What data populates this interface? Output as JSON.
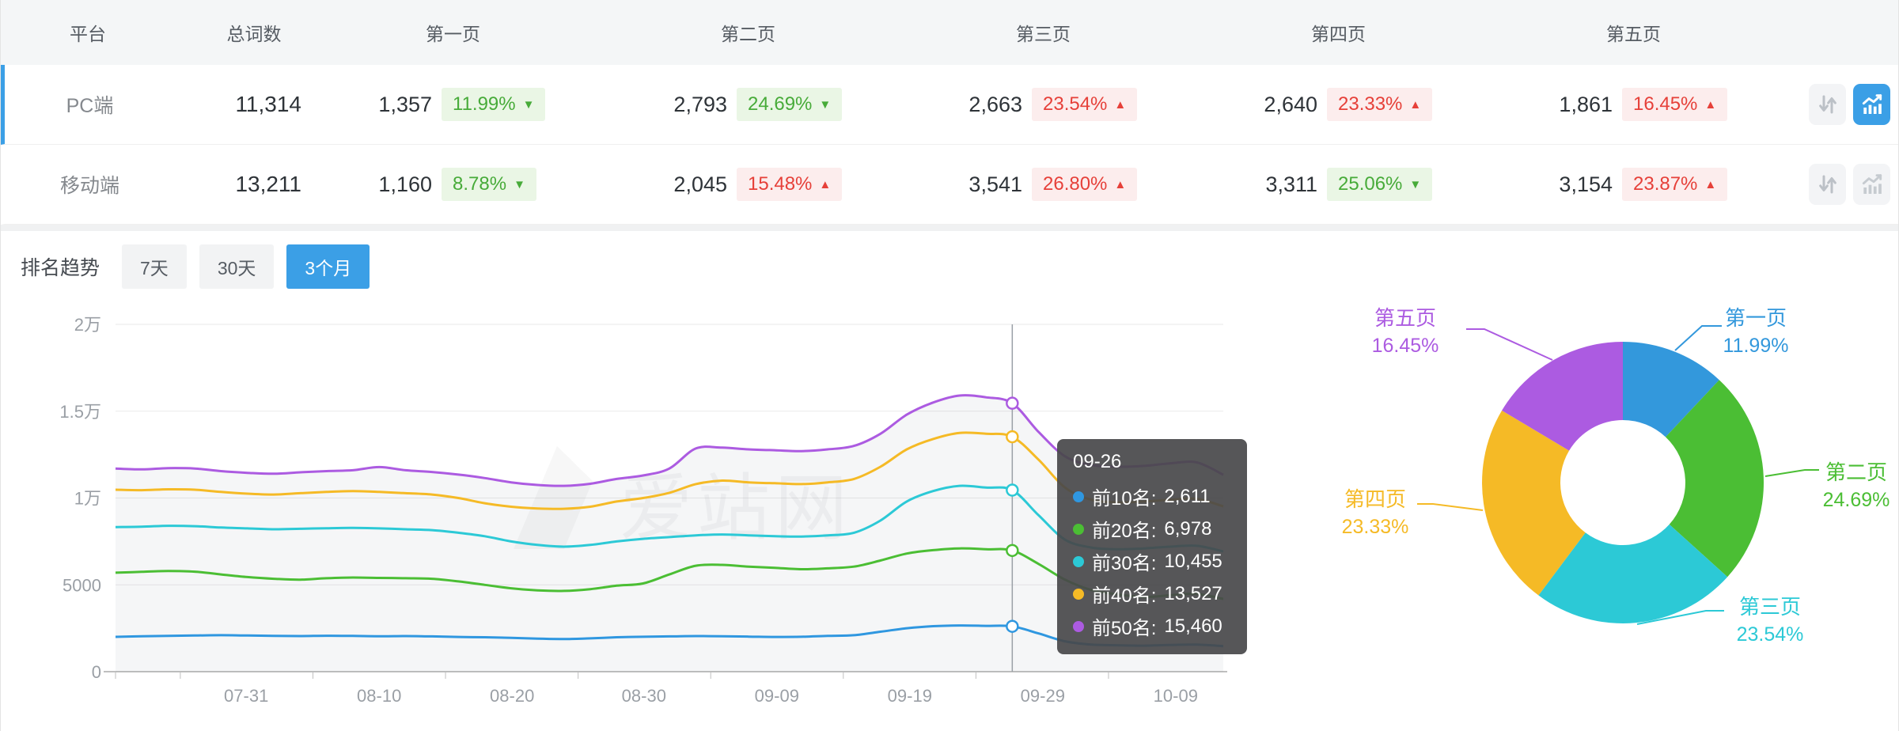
{
  "table": {
    "headers": [
      "平台",
      "总词数",
      "第一页",
      "第二页",
      "第三页",
      "第四页",
      "第五页"
    ],
    "rows": [
      {
        "platform": "PC端",
        "total": "11,314",
        "selected": true,
        "pages": [
          {
            "count": "1,357",
            "pct": "11.99%",
            "arrow": "▼",
            "tone": "green"
          },
          {
            "count": "2,793",
            "pct": "24.69%",
            "arrow": "▼",
            "tone": "green"
          },
          {
            "count": "2,663",
            "pct": "23.54%",
            "arrow": "▲",
            "tone": "red"
          },
          {
            "count": "2,640",
            "pct": "23.33%",
            "arrow": "▲",
            "tone": "red"
          },
          {
            "count": "1,861",
            "pct": "16.45%",
            "arrow": "▲",
            "tone": "red"
          }
        ],
        "actions": {
          "chart_active": true
        }
      },
      {
        "platform": "移动端",
        "total": "13,211",
        "selected": false,
        "pages": [
          {
            "count": "1,160",
            "pct": "8.78%",
            "arrow": "▼",
            "tone": "green"
          },
          {
            "count": "2,045",
            "pct": "15.48%",
            "arrow": "▲",
            "tone": "red"
          },
          {
            "count": "3,541",
            "pct": "26.80%",
            "arrow": "▲",
            "tone": "red"
          },
          {
            "count": "3,311",
            "pct": "25.06%",
            "arrow": "▼",
            "tone": "green"
          },
          {
            "count": "3,154",
            "pct": "23.87%",
            "arrow": "▲",
            "tone": "red"
          }
        ],
        "actions": {
          "chart_active": false
        }
      }
    ]
  },
  "trend": {
    "label": "排名趋势",
    "tabs": [
      {
        "label": "7天"
      },
      {
        "label": "30天"
      },
      {
        "label": "3个月",
        "active": true
      }
    ]
  },
  "watermark": "爱站网",
  "chart_data": [
    {
      "type": "line",
      "title": "排名趋势（3个月）",
      "ylim": [
        0,
        20000
      ],
      "y_ticks": [
        "0",
        "5000",
        "1万",
        "1.5万",
        "2万"
      ],
      "x_ticks": [
        {
          "label": "07-31",
          "f": 0.118
        },
        {
          "label": "08-10",
          "f": 0.238
        },
        {
          "label": "08-20",
          "f": 0.358
        },
        {
          "label": "08-30",
          "f": 0.477
        },
        {
          "label": "09-09",
          "f": 0.597
        },
        {
          "label": "09-19",
          "f": 0.717
        },
        {
          "label": "09-29",
          "f": 0.837
        },
        {
          "label": "10-09",
          "f": 0.957
        }
      ],
      "grid": true,
      "legend_position": "none",
      "series": [
        {
          "name": "前10名",
          "color": "#2F97E0",
          "values": [
            2005,
            2040,
            2060,
            2080,
            2100,
            2080,
            2060,
            2050,
            2070,
            2060,
            2040,
            2050,
            2030,
            2000,
            1980,
            1950,
            1900,
            1880,
            1920,
            1980,
            2010,
            2030,
            2050,
            2040,
            2020,
            2000,
            2010,
            2060,
            2100,
            2300,
            2500,
            2620,
            2660,
            2640,
            2611,
            2200,
            1750,
            1560,
            1520,
            1500,
            1540,
            1560,
            1470
          ]
        },
        {
          "name": "前20名",
          "color": "#4BBE34",
          "values": [
            5700,
            5750,
            5800,
            5760,
            5600,
            5450,
            5350,
            5300,
            5380,
            5420,
            5400,
            5380,
            5350,
            5200,
            5000,
            4800,
            4680,
            4650,
            4750,
            4950,
            5080,
            5600,
            6100,
            6150,
            6050,
            5980,
            5900,
            5950,
            6050,
            6400,
            6800,
            7000,
            7100,
            7050,
            6978,
            6200,
            5300,
            4700,
            4450,
            4300,
            4400,
            4480,
            4190
          ]
        },
        {
          "name": "前30名",
          "color": "#2CC9D6",
          "values": [
            8330,
            8350,
            8400,
            8380,
            8300,
            8250,
            8200,
            8230,
            8260,
            8280,
            8250,
            8200,
            8150,
            8000,
            7800,
            7500,
            7300,
            7200,
            7300,
            7500,
            7650,
            7750,
            7850,
            7900,
            7850,
            7800,
            7780,
            7850,
            8000,
            8700,
            9800,
            10400,
            10700,
            10600,
            10455,
            9000,
            7600,
            7150,
            7050,
            7100,
            7200,
            7250,
            6925
          ]
        },
        {
          "name": "前40名",
          "color": "#F5BA26",
          "values": [
            10480,
            10450,
            10500,
            10480,
            10350,
            10250,
            10200,
            10280,
            10350,
            10400,
            10350,
            10280,
            10200,
            10000,
            9700,
            9500,
            9400,
            9380,
            9500,
            9800,
            10000,
            10300,
            10800,
            11000,
            10900,
            10850,
            10800,
            10900,
            11100,
            11800,
            12800,
            13400,
            13750,
            13700,
            13527,
            12200,
            10600,
            9900,
            9750,
            9800,
            9900,
            9950,
            9520
          ]
        },
        {
          "name": "前50名",
          "color": "#AC5BE1",
          "values": [
            11700,
            11650,
            11720,
            11700,
            11550,
            11450,
            11400,
            11480,
            11550,
            11600,
            11780,
            11600,
            11500,
            11350,
            11150,
            10900,
            10750,
            10700,
            10820,
            11100,
            11300,
            11700,
            12850,
            12900,
            12800,
            12750,
            12700,
            12800,
            13000,
            13700,
            14800,
            15500,
            15900,
            15800,
            15460,
            13800,
            12400,
            11900,
            11800,
            11850,
            12000,
            12050,
            11340
          ]
        }
      ],
      "tooltip": {
        "date": "09-26",
        "marker_index": 34,
        "items": [
          {
            "name": "前10名:",
            "value": "2,611",
            "color": "#2F97E0"
          },
          {
            "name": "前20名:",
            "value": "6,978",
            "color": "#4BBE34"
          },
          {
            "name": "前30名:",
            "value": "10,455",
            "color": "#2CC9D6"
          },
          {
            "name": "前40名:",
            "value": "13,527",
            "color": "#F5BA26"
          },
          {
            "name": "前50名:",
            "value": "15,460",
            "color": "#AC5BE1"
          }
        ]
      }
    },
    {
      "type": "pie",
      "donut": true,
      "segments": [
        {
          "label": "第一页",
          "pct": "11.99%",
          "value": 11.99,
          "color": "#3398DC"
        },
        {
          "label": "第二页",
          "pct": "24.69%",
          "value": 24.69,
          "color": "#4BBE34"
        },
        {
          "label": "第三页",
          "pct": "23.54%",
          "value": 23.54,
          "color": "#2CC9D6"
        },
        {
          "label": "第四页",
          "pct": "23.33%",
          "value": 23.33,
          "color": "#F5BA26"
        },
        {
          "label": "第五页",
          "pct": "16.45%",
          "value": 16.45,
          "color": "#AC5BE1"
        }
      ]
    }
  ]
}
